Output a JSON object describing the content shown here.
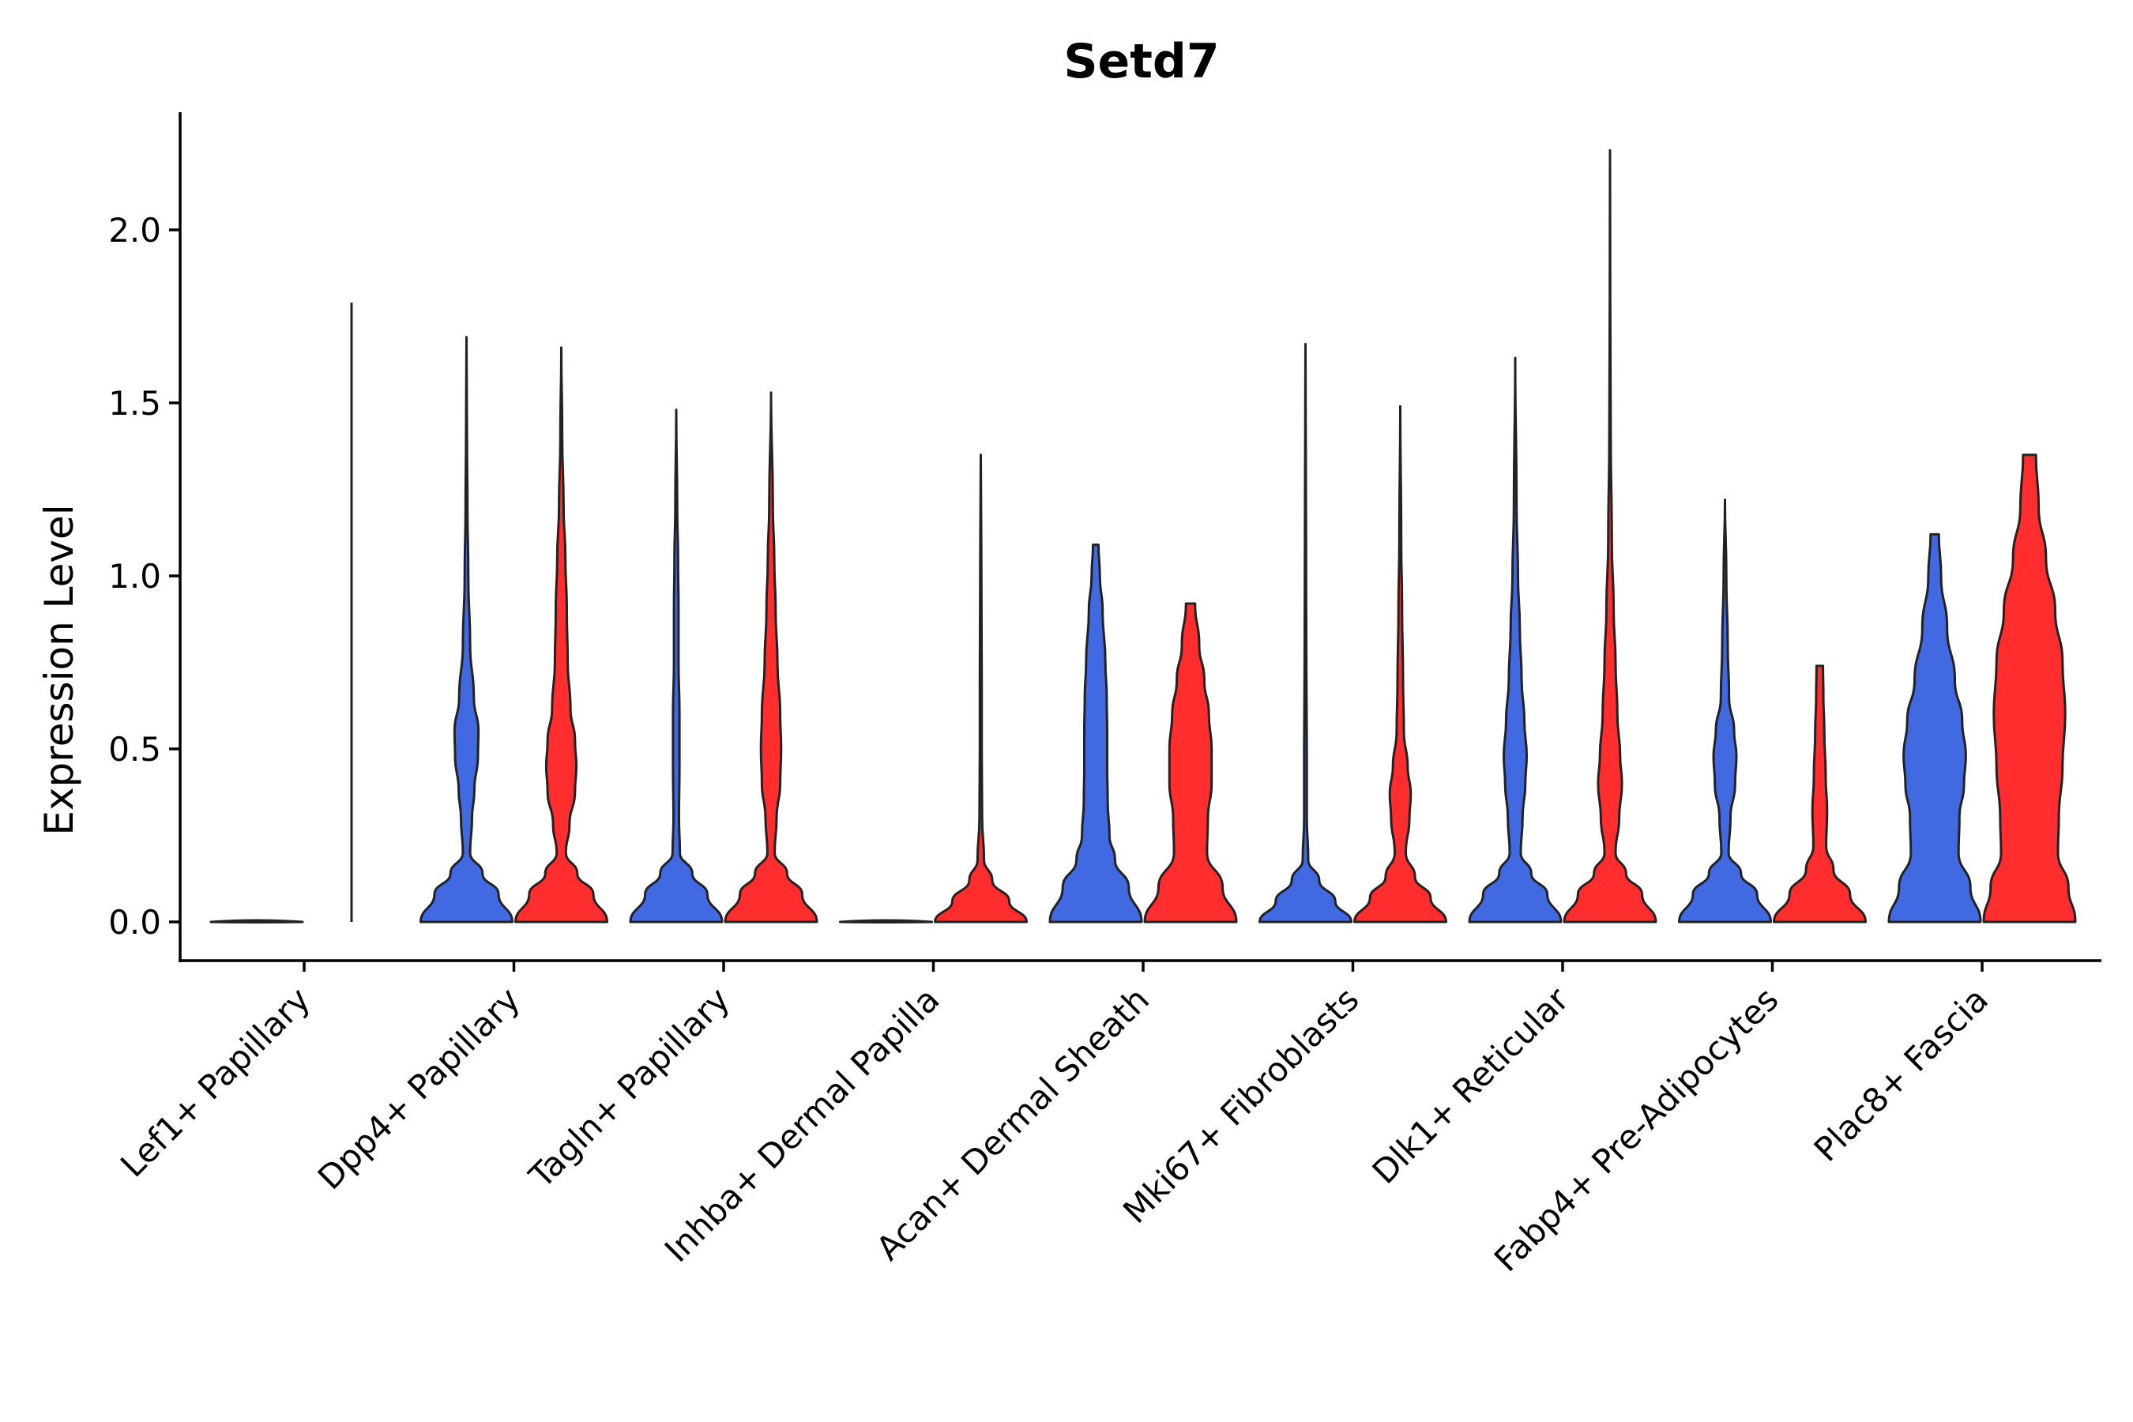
{
  "chart_data": {
    "type": "violin",
    "title": "Setd7",
    "xlabel": "",
    "ylabel": "Expression Level",
    "ylim": [
      -0.11,
      2.35
    ],
    "yticks": [
      0.0,
      0.5,
      1.0,
      1.5,
      2.0
    ],
    "ytick_labels": [
      "0.0",
      "0.5",
      "1.0",
      "1.5",
      "2.0"
    ],
    "colors": {
      "blue": "#4169E1",
      "red": "#FF2D2D",
      "empty": "#FFFFFF",
      "outline": "#222222"
    },
    "categories": [
      "Lef1+ Papillary",
      "Dpp4+ Papillary",
      "Tagln+ Papillary",
      "Inhba+ Dermal Papilla",
      "Acan+ Dermal Sheath",
      "Mki67+ Fibroblasts",
      "Dlk1+ Reticular",
      "Fabp4+ Pre-Adipocytes",
      "Plac8+ Fascia"
    ],
    "violins": [
      {
        "category": 0,
        "side": "left",
        "color": "empty",
        "max": 0.01,
        "flat": true
      },
      {
        "category": 0,
        "side": "right",
        "color": "empty",
        "max": 1.79,
        "thread_only": true
      },
      {
        "category": 1,
        "side": "left",
        "color": "blue",
        "max": 1.69,
        "profile": [
          [
            0,
            1.0
          ],
          [
            0.08,
            0.7
          ],
          [
            0.14,
            0.35
          ],
          [
            0.2,
            0.08
          ],
          [
            0.3,
            0.12
          ],
          [
            0.38,
            0.17
          ],
          [
            0.48,
            0.25
          ],
          [
            0.55,
            0.26
          ],
          [
            0.65,
            0.16
          ],
          [
            0.8,
            0.08
          ],
          [
            1.0,
            0.04
          ],
          [
            1.2,
            0.02
          ],
          [
            1.4,
            0.01
          ],
          [
            1.69,
            0.0
          ]
        ]
      },
      {
        "category": 1,
        "side": "right",
        "color": "red",
        "max": 1.66,
        "profile": [
          [
            0,
            1.0
          ],
          [
            0.08,
            0.7
          ],
          [
            0.14,
            0.35
          ],
          [
            0.2,
            0.1
          ],
          [
            0.28,
            0.18
          ],
          [
            0.38,
            0.3
          ],
          [
            0.45,
            0.33
          ],
          [
            0.52,
            0.3
          ],
          [
            0.62,
            0.2
          ],
          [
            0.75,
            0.14
          ],
          [
            0.9,
            0.12
          ],
          [
            1.05,
            0.09
          ],
          [
            1.2,
            0.05
          ],
          [
            1.4,
            0.02
          ],
          [
            1.66,
            0.0
          ]
        ]
      },
      {
        "category": 2,
        "side": "left",
        "color": "blue",
        "max": 1.48,
        "profile": [
          [
            0,
            1.0
          ],
          [
            0.08,
            0.68
          ],
          [
            0.14,
            0.35
          ],
          [
            0.2,
            0.08
          ],
          [
            0.3,
            0.06
          ],
          [
            0.45,
            0.07
          ],
          [
            0.6,
            0.07
          ],
          [
            0.75,
            0.05
          ],
          [
            0.9,
            0.05
          ],
          [
            1.05,
            0.04
          ],
          [
            1.2,
            0.02
          ],
          [
            1.48,
            0.0
          ]
        ]
      },
      {
        "category": 2,
        "side": "right",
        "color": "red",
        "max": 1.53,
        "profile": [
          [
            0,
            1.0
          ],
          [
            0.08,
            0.68
          ],
          [
            0.14,
            0.35
          ],
          [
            0.2,
            0.08
          ],
          [
            0.3,
            0.12
          ],
          [
            0.4,
            0.2
          ],
          [
            0.5,
            0.22
          ],
          [
            0.6,
            0.2
          ],
          [
            0.75,
            0.14
          ],
          [
            0.9,
            0.1
          ],
          [
            1.05,
            0.07
          ],
          [
            1.2,
            0.04
          ],
          [
            1.53,
            0.0
          ]
        ]
      },
      {
        "category": 3,
        "side": "left",
        "color": "empty",
        "max": 0.01,
        "flat": true
      },
      {
        "category": 3,
        "side": "right",
        "color": "red",
        "max": 1.35,
        "profile": [
          [
            0,
            1.0
          ],
          [
            0.06,
            0.62
          ],
          [
            0.12,
            0.25
          ],
          [
            0.18,
            0.07
          ],
          [
            0.3,
            0.03
          ],
          [
            0.5,
            0.02
          ],
          [
            0.7,
            0.02
          ],
          [
            0.9,
            0.015
          ],
          [
            1.1,
            0.01
          ],
          [
            1.35,
            0.0
          ]
        ]
      },
      {
        "category": 4,
        "side": "left",
        "color": "blue",
        "max": 1.09,
        "profile": [
          [
            0,
            1.0
          ],
          [
            0.1,
            0.72
          ],
          [
            0.18,
            0.42
          ],
          [
            0.25,
            0.3
          ],
          [
            0.35,
            0.26
          ],
          [
            0.45,
            0.25
          ],
          [
            0.55,
            0.25
          ],
          [
            0.65,
            0.24
          ],
          [
            0.75,
            0.21
          ],
          [
            0.9,
            0.15
          ],
          [
            1.0,
            0.09
          ],
          [
            1.09,
            0.06
          ]
        ]
      },
      {
        "category": 4,
        "side": "right",
        "color": "red",
        "max": 0.92,
        "profile": [
          [
            0,
            1.0
          ],
          [
            0.1,
            0.7
          ],
          [
            0.2,
            0.36
          ],
          [
            0.3,
            0.38
          ],
          [
            0.4,
            0.46
          ],
          [
            0.5,
            0.46
          ],
          [
            0.6,
            0.4
          ],
          [
            0.7,
            0.3
          ],
          [
            0.8,
            0.19
          ],
          [
            0.92,
            0.1
          ]
        ]
      },
      {
        "category": 5,
        "side": "left",
        "color": "blue",
        "max": 1.67,
        "profile": [
          [
            0,
            1.0
          ],
          [
            0.06,
            0.65
          ],
          [
            0.12,
            0.3
          ],
          [
            0.18,
            0.06
          ],
          [
            0.3,
            0.03
          ],
          [
            0.5,
            0.03
          ],
          [
            0.7,
            0.02
          ],
          [
            0.9,
            0.015
          ],
          [
            1.2,
            0.01
          ],
          [
            1.67,
            0.0
          ]
        ]
      },
      {
        "category": 5,
        "side": "right",
        "color": "red",
        "max": 1.49,
        "profile": [
          [
            0,
            1.0
          ],
          [
            0.07,
            0.66
          ],
          [
            0.13,
            0.32
          ],
          [
            0.2,
            0.12
          ],
          [
            0.3,
            0.2
          ],
          [
            0.37,
            0.23
          ],
          [
            0.45,
            0.16
          ],
          [
            0.55,
            0.08
          ],
          [
            0.7,
            0.06
          ],
          [
            0.9,
            0.04
          ],
          [
            1.1,
            0.02
          ],
          [
            1.49,
            0.0
          ]
        ]
      },
      {
        "category": 6,
        "side": "left",
        "color": "blue",
        "max": 1.63,
        "profile": [
          [
            0,
            1.0
          ],
          [
            0.08,
            0.7
          ],
          [
            0.14,
            0.35
          ],
          [
            0.2,
            0.12
          ],
          [
            0.3,
            0.16
          ],
          [
            0.4,
            0.22
          ],
          [
            0.48,
            0.25
          ],
          [
            0.58,
            0.2
          ],
          [
            0.7,
            0.14
          ],
          [
            0.85,
            0.1
          ],
          [
            1.0,
            0.06
          ],
          [
            1.2,
            0.03
          ],
          [
            1.63,
            0.0
          ]
        ]
      },
      {
        "category": 6,
        "side": "right",
        "color": "red",
        "max": 2.23,
        "profile": [
          [
            0,
            1.0
          ],
          [
            0.08,
            0.7
          ],
          [
            0.14,
            0.35
          ],
          [
            0.2,
            0.12
          ],
          [
            0.3,
            0.2
          ],
          [
            0.4,
            0.26
          ],
          [
            0.48,
            0.22
          ],
          [
            0.6,
            0.16
          ],
          [
            0.75,
            0.12
          ],
          [
            0.9,
            0.08
          ],
          [
            1.1,
            0.04
          ],
          [
            1.4,
            0.015
          ],
          [
            1.8,
            0.006
          ],
          [
            2.23,
            0.0
          ]
        ]
      },
      {
        "category": 7,
        "side": "left",
        "color": "blue",
        "max": 1.22,
        "profile": [
          [
            0,
            1.0
          ],
          [
            0.08,
            0.7
          ],
          [
            0.14,
            0.35
          ],
          [
            0.2,
            0.08
          ],
          [
            0.3,
            0.12
          ],
          [
            0.4,
            0.22
          ],
          [
            0.48,
            0.25
          ],
          [
            0.55,
            0.2
          ],
          [
            0.65,
            0.09
          ],
          [
            0.8,
            0.06
          ],
          [
            1.0,
            0.03
          ],
          [
            1.22,
            0.0
          ]
        ]
      },
      {
        "category": 7,
        "side": "right",
        "color": "red",
        "max": 0.74,
        "profile": [
          [
            0,
            1.0
          ],
          [
            0.08,
            0.66
          ],
          [
            0.15,
            0.3
          ],
          [
            0.22,
            0.14
          ],
          [
            0.32,
            0.16
          ],
          [
            0.42,
            0.13
          ],
          [
            0.55,
            0.1
          ],
          [
            0.65,
            0.08
          ],
          [
            0.74,
            0.07
          ]
        ]
      },
      {
        "category": 8,
        "side": "left",
        "color": "blue",
        "max": 1.12,
        "profile": [
          [
            0,
            1.0
          ],
          [
            0.1,
            0.78
          ],
          [
            0.2,
            0.52
          ],
          [
            0.3,
            0.54
          ],
          [
            0.4,
            0.64
          ],
          [
            0.48,
            0.68
          ],
          [
            0.58,
            0.6
          ],
          [
            0.7,
            0.44
          ],
          [
            0.85,
            0.27
          ],
          [
            1.0,
            0.14
          ],
          [
            1.12,
            0.09
          ]
        ]
      },
      {
        "category": 8,
        "side": "right",
        "color": "red",
        "max": 1.35,
        "profile": [
          [
            0,
            1.0
          ],
          [
            0.1,
            0.85
          ],
          [
            0.2,
            0.62
          ],
          [
            0.3,
            0.64
          ],
          [
            0.45,
            0.72
          ],
          [
            0.6,
            0.78
          ],
          [
            0.75,
            0.72
          ],
          [
            0.9,
            0.56
          ],
          [
            1.05,
            0.36
          ],
          [
            1.2,
            0.2
          ],
          [
            1.35,
            0.14
          ]
        ]
      }
    ]
  }
}
